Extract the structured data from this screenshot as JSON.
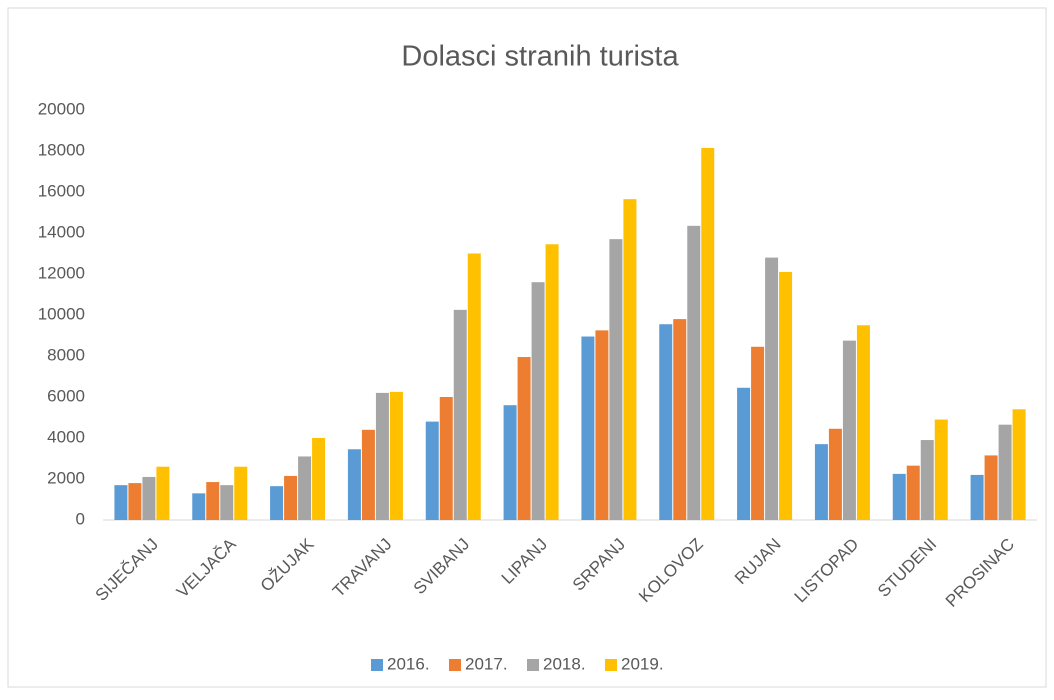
{
  "chart_data": {
    "type": "bar",
    "title": "Dolasci stranih turista",
    "categories": [
      "SIJEČANJ",
      "VELJAČA",
      "OŽUJAK",
      "TRAVANJ",
      "SVIBANJ",
      "LIPANJ",
      "SRPANJ",
      "KOLOVOZ",
      "RUJAN",
      "LISTOPAD",
      "STUDENI",
      "PROSINAC"
    ],
    "series": [
      {
        "name": "2016.",
        "color": "#5b9bd5",
        "values": [
          1700,
          1300,
          1650,
          3450,
          4800,
          5600,
          8950,
          9550,
          6450,
          3700,
          2250,
          2200
        ]
      },
      {
        "name": "2017.",
        "color": "#ed7d31",
        "values": [
          1800,
          1850,
          2150,
          4400,
          6000,
          7950,
          9250,
          9800,
          8450,
          4450,
          2650,
          3150
        ]
      },
      {
        "name": "2018.",
        "color": "#a5a5a5",
        "values": [
          2100,
          1700,
          3100,
          6200,
          10250,
          11600,
          13700,
          14350,
          12800,
          8750,
          3900,
          4650
        ]
      },
      {
        "name": "2019.",
        "color": "#ffc000",
        "values": [
          2600,
          2600,
          4000,
          6250,
          13000,
          13450,
          15650,
          18150,
          12100,
          9500,
          4900,
          5400
        ]
      }
    ],
    "ylim": [
      0,
      20000
    ],
    "yticks": [
      0,
      2000,
      4000,
      6000,
      8000,
      10000,
      12000,
      14000,
      16000,
      18000,
      20000
    ],
    "grid": false,
    "legend": "bottom"
  }
}
